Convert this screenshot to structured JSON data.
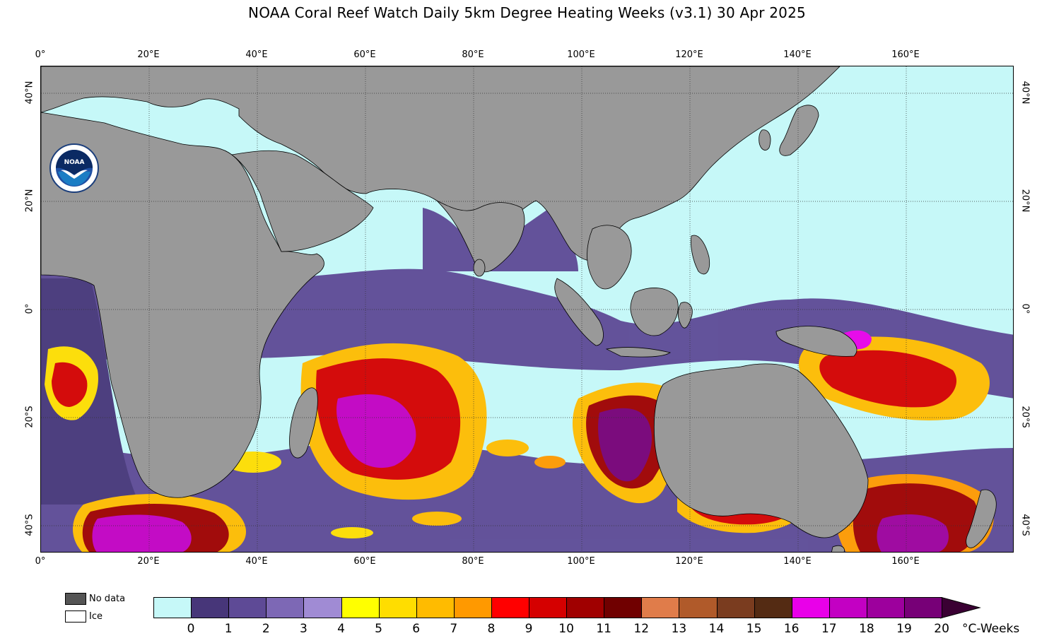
{
  "title": "NOAA Coral Reef Watch Daily 5km Degree Heating Weeks  (v3.1)   30 Apr 2025",
  "axes": {
    "lon_labels": [
      "0°",
      "20°E",
      "40°E",
      "60°E",
      "80°E",
      "100°E",
      "120°E",
      "140°E",
      "160°E"
    ],
    "lat_labels": [
      "40°N",
      "20°N",
      "0°",
      "20°S",
      "40°S"
    ]
  },
  "legend_keys": {
    "no_data": {
      "label": "No data",
      "color": "#555555"
    },
    "ice": {
      "label": "Ice",
      "color": "#ffffff"
    }
  },
  "colorbar": {
    "tick_labels": [
      "0",
      "1",
      "2",
      "3",
      "4",
      "5",
      "6",
      "7",
      "8",
      "9",
      "10",
      "11",
      "12",
      "13",
      "14",
      "15",
      "16",
      "17",
      "18",
      "19",
      "20"
    ],
    "colors": [
      "#c6f8f8",
      "#473679",
      "#5e4a96",
      "#7d68b5",
      "#a08bd4",
      "#ffff00",
      "#ffdd00",
      "#ffbb00",
      "#ff9900",
      "#ff0000",
      "#d50000",
      "#a00000",
      "#700000",
      "#e07c4a",
      "#b05a2a",
      "#7a3c1f",
      "#542b13",
      "#e900e9",
      "#c300c3",
      "#9d009d",
      "#770077"
    ],
    "overflow_color": "#3a0033",
    "units": "°C-Weeks"
  },
  "map_colors": {
    "ocean_zero": "#c6f8f8",
    "land": "#999999",
    "grid": "#333333"
  },
  "logo": {
    "text": "NOAA",
    "ring_text": "NATIONAL OCEANIC AND ATMOSPHERIC ADMINISTRATION"
  }
}
